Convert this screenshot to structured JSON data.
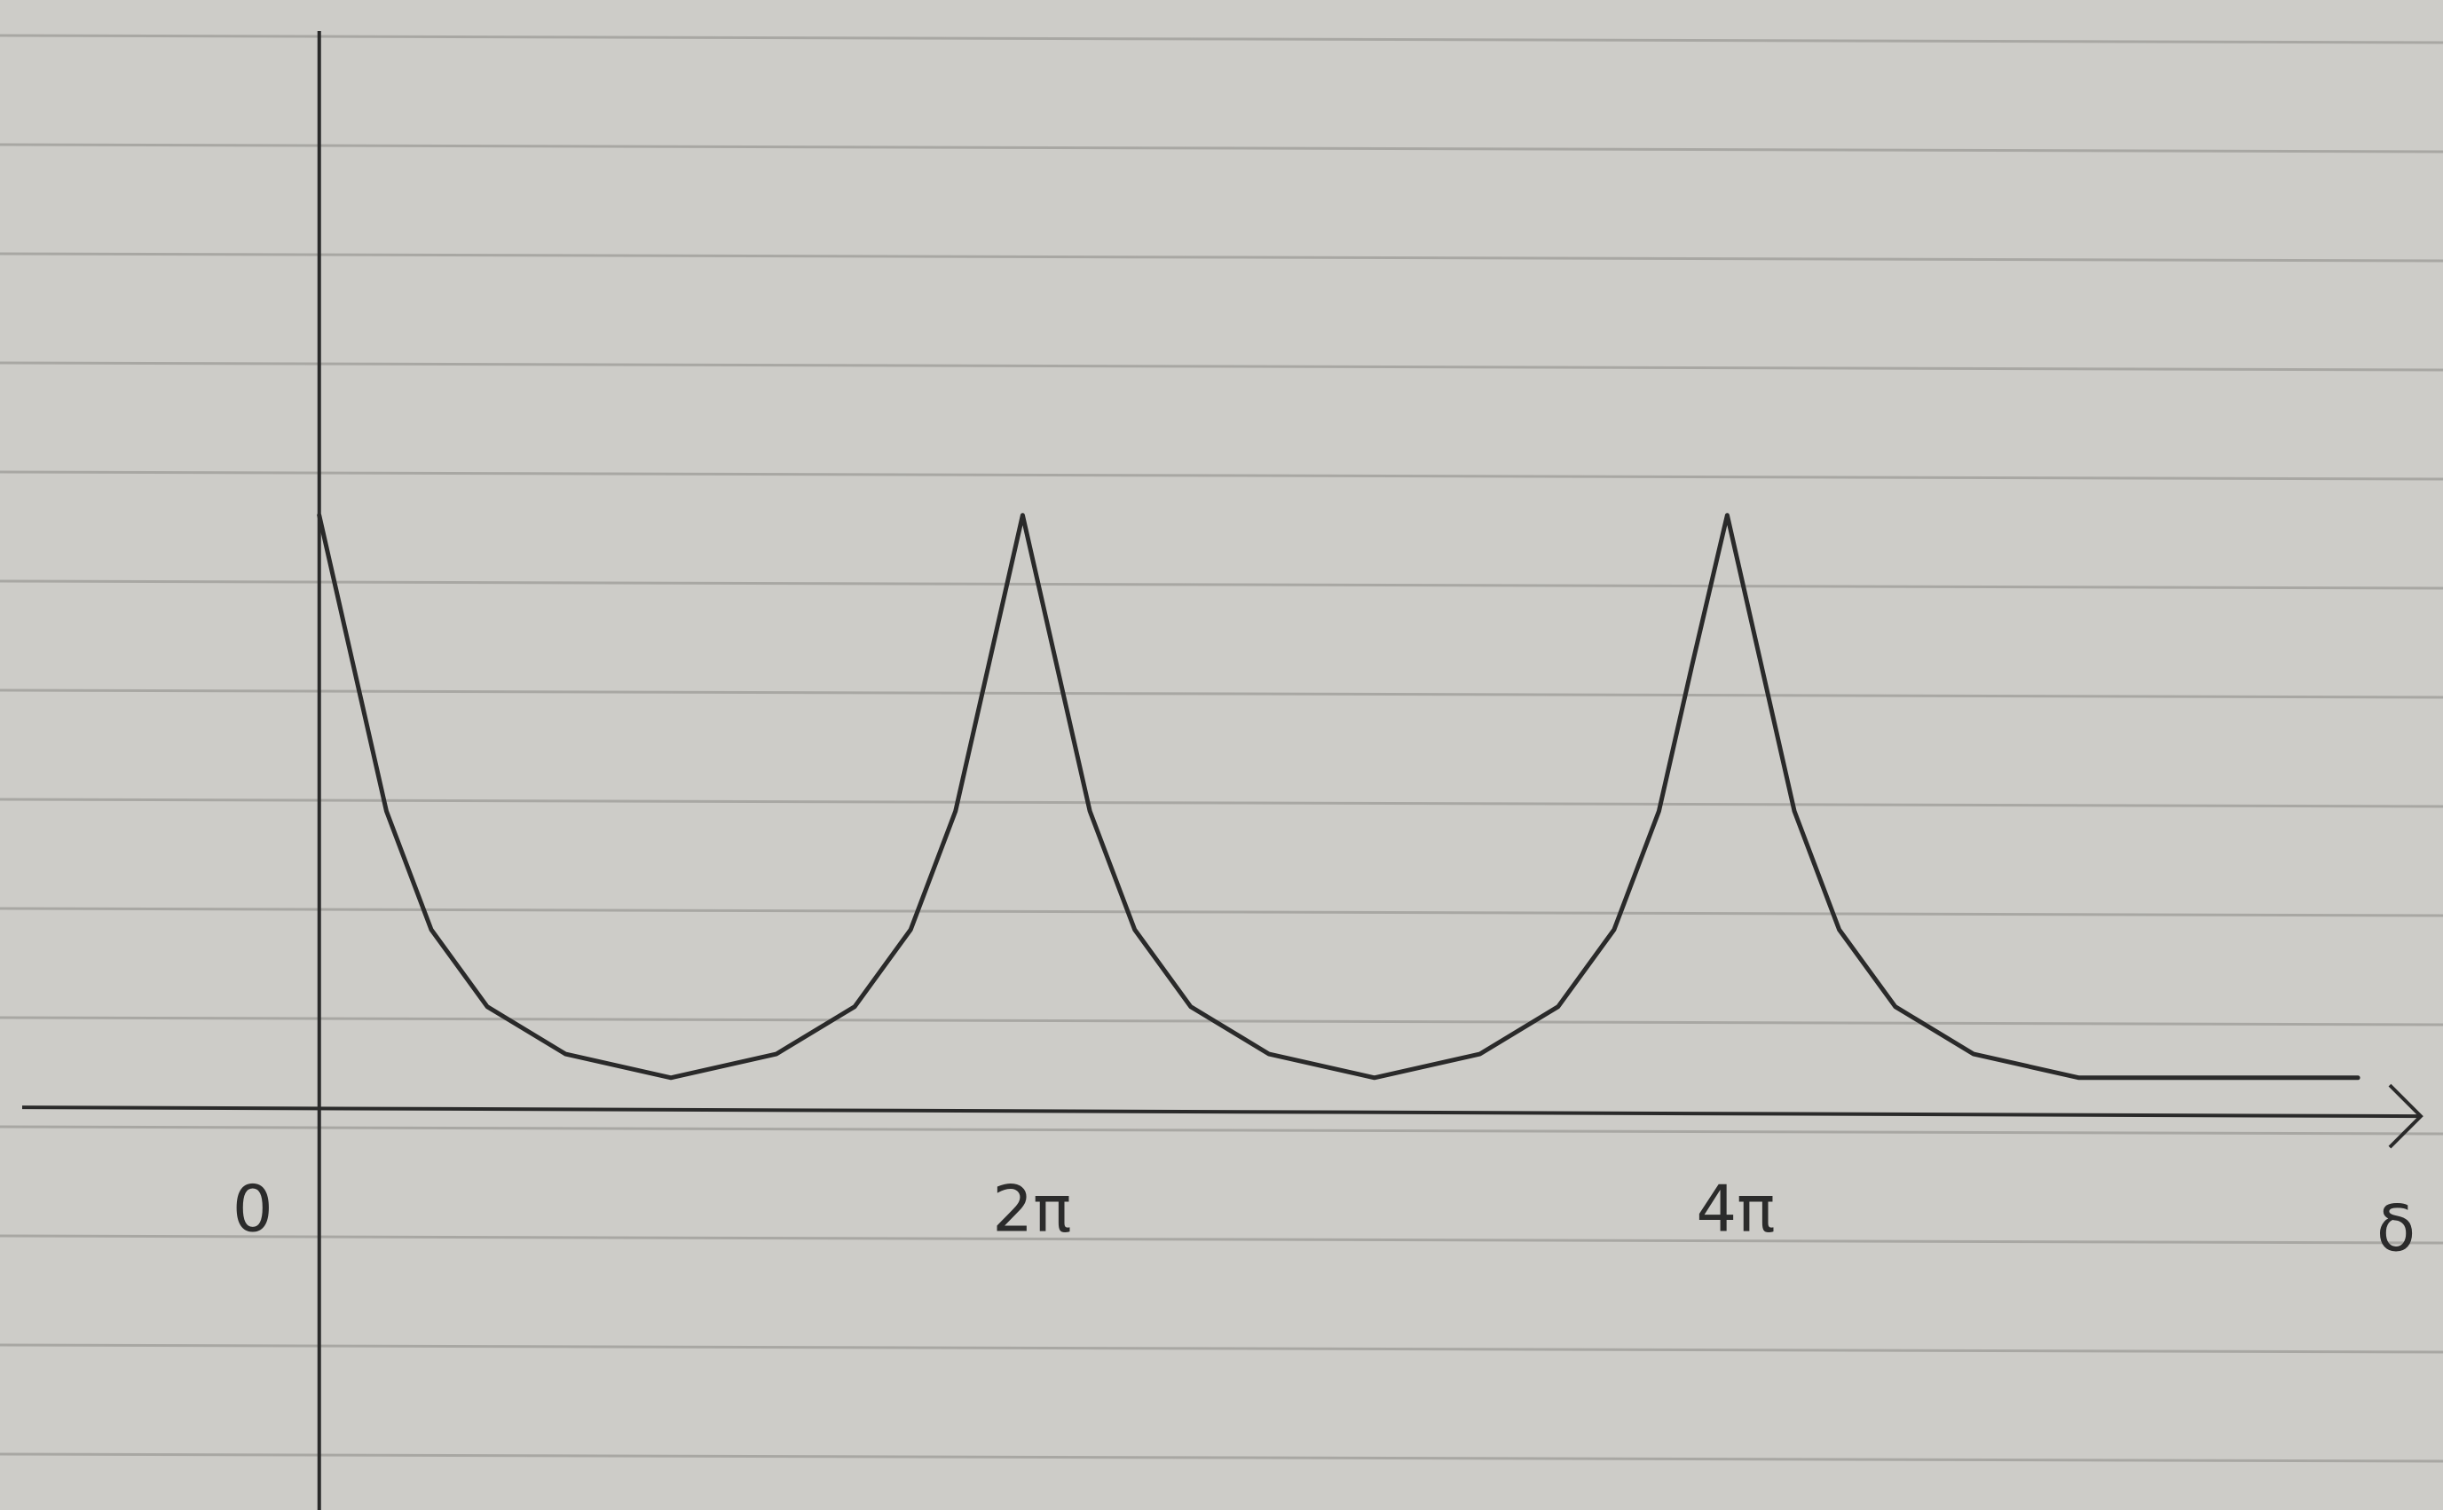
{
  "chart_data": {
    "type": "line",
    "x": [
      0,
      0.3,
      0.6,
      1.0,
      1.5,
      2.2,
      3.14,
      4.08,
      4.78,
      5.28,
      5.68,
      5.98,
      6.28,
      6.58,
      6.88,
      7.28,
      7.78,
      8.48,
      9.42,
      10.36,
      11.06,
      11.56,
      11.96,
      12.26,
      12.57,
      12.87,
      13.17,
      13.57,
      14.07,
      14.77,
      15.71,
      17.0,
      18.2
    ],
    "series": [
      {
        "color": "#2a2a2a",
        "values": [
          1,
          0.75,
          0.5,
          0.3,
          0.17,
          0.09,
          0.05,
          0.09,
          0.17,
          0.3,
          0.5,
          0.75,
          1,
          0.75,
          0.5,
          0.3,
          0.17,
          0.09,
          0.05,
          0.09,
          0.17,
          0.3,
          0.5,
          0.75,
          1,
          0.75,
          0.5,
          0.3,
          0.17,
          0.09,
          0.05,
          0.05,
          0.05
        ]
      }
    ],
    "xlabel": "δ",
    "xlim": [
      -2.85,
      18.96
    ],
    "ylim": [
      -0.68,
      1.87
    ],
    "xticks": [
      0,
      {
        "value": 6.2832,
        "label": "2π"
      },
      {
        "value": 12.5664,
        "label": "4π"
      }
    ]
  }
}
